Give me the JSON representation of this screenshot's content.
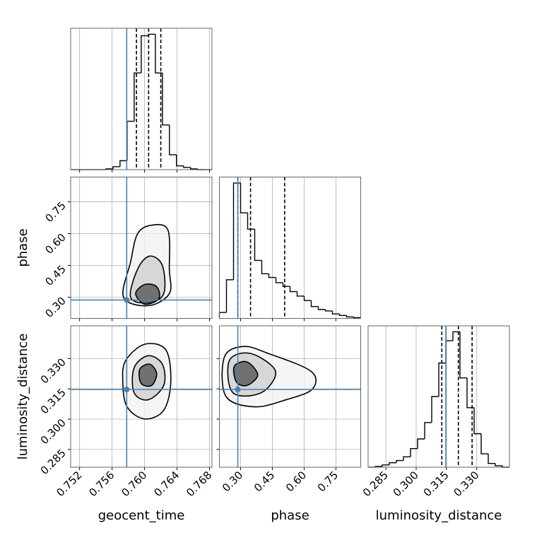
{
  "chart_data": {
    "type": "corner",
    "color": "#000000",
    "truth_color": "#4682b4",
    "grid": true,
    "parameters": [
      {
        "label": "geocent_time",
        "xlim": [
          0.7509,
          0.7683
        ],
        "xticks": [
          0.752,
          0.756,
          {
            "value": 0.76,
            "label": "0.760"
          },
          0.764,
          0.768
        ],
        "truth": 0.7578,
        "quantiles": [
          0.759,
          0.7605,
          0.762
        ],
        "hist": {
          "bins": [
            0.7509,
            0.75177,
            0.75264,
            0.7535,
            0.75437,
            0.75524,
            0.75611,
            0.75698,
            0.75785,
            0.75872,
            0.75959,
            0.76046,
            0.76133,
            0.7622,
            0.76306,
            0.76393,
            0.7648,
            0.76567,
            0.76654,
            0.76741,
            0.7683
          ],
          "counts": [
            0,
            0,
            0,
            0,
            0,
            1,
            4,
            12,
            65,
            130,
            180,
            182,
            130,
            60,
            20,
            5,
            3,
            1,
            0,
            0
          ],
          "ylim": [
            0,
            190
          ]
        }
      },
      {
        "label": "phase",
        "xlim": [
          0.2,
          0.867
        ],
        "xticks": [
          {
            "value": 0.3,
            "label": "0.30"
          },
          0.45,
          {
            "value": 0.6,
            "label": "0.60"
          },
          0.75
        ],
        "truth": 0.287,
        "quantiles": [
          0.287,
          0.347,
          0.508
        ],
        "hist": {
          "bins": [
            0.2,
            0.23335,
            0.2667,
            0.30005,
            0.3334,
            0.36675,
            0.4001,
            0.43345,
            0.4668,
            0.50015,
            0.5335,
            0.56685,
            0.6002,
            0.63355,
            0.6669,
            0.70025,
            0.7336,
            0.76695,
            0.8003,
            0.83365,
            0.867
          ],
          "counts": [
            8,
            52,
            182,
            142,
            120,
            78,
            60,
            55,
            48,
            43,
            36,
            30,
            24,
            16,
            12,
            10,
            6,
            4,
            2,
            1
          ],
          "ylim": [
            0,
            190
          ]
        }
      },
      {
        "label": "luminosity_distance",
        "xlim": [
          0.2762,
          0.3462
        ],
        "xticks": [
          0.285,
          {
            "value": 0.3,
            "label": "0.300"
          },
          0.315,
          {
            "value": 0.33,
            "label": "0.330"
          }
        ],
        "truth": 0.3147,
        "quantiles": [
          0.3127,
          0.3209,
          0.3277
        ],
        "hist": {
          "bins": [
            0.2762,
            0.2797,
            0.2832,
            0.2867,
            0.2902,
            0.2937,
            0.2972,
            0.3007,
            0.3042,
            0.3077,
            0.3112,
            0.3147,
            0.3182,
            0.3217,
            0.3252,
            0.3287,
            0.3322,
            0.3357,
            0.3392,
            0.3427,
            0.3462
          ],
          "counts": [
            0,
            1,
            3,
            6,
            9,
            14,
            25,
            38,
            60,
            95,
            140,
            170,
            182,
            120,
            80,
            45,
            18,
            5,
            2,
            0
          ],
          "ylim": [
            0,
            190
          ]
        }
      }
    ],
    "pairs": [
      {
        "x": 0,
        "y": 1,
        "contours": [
          {
            "x": [
              0.75741,
              0.75828,
              0.75915,
              0.76088,
              0.76288,
              0.76305,
              0.76305,
              0.76045
            ],
            "y": [
              0.3,
              0.467,
              0.6,
              0.64,
              0.617,
              0.433,
              0.317,
              0.26
            ]
          },
          {
            "x": [
              0.75828,
              0.75915,
              0.76063,
              0.76219,
              0.76236,
              0.76045
            ],
            "y": [
              0.3,
              0.433,
              0.494,
              0.45,
              0.317,
              0.273
            ]
          },
          {
            "x": [
              0.7589,
              0.76002,
              0.76149,
              0.76175,
              0.76002
            ],
            "y": [
              0.317,
              0.36,
              0.35,
              0.293,
              0.267
            ]
          }
        ]
      },
      {
        "x": 0,
        "y": 2,
        "contours": [
          {
            "x": [
              0.75767,
              0.76002,
              0.76262,
              0.76323,
              0.76236,
              0.76002,
              0.75784,
              0.75732
            ],
            "y": [
              0.329,
              0.3371,
              0.3343,
              0.3184,
              0.3044,
              0.3001,
              0.3061,
              0.3184
            ]
          },
          {
            "x": [
              0.75871,
              0.76045,
              0.76219,
              0.76236,
              0.76045,
              0.75871
            ],
            "y": [
              0.3254,
              0.3314,
              0.3272,
              0.3167,
              0.3096,
              0.3131
            ]
          },
          {
            "x": [
              0.75941,
              0.76063,
              0.76149,
              0.76088,
              0.75958
            ],
            "y": [
              0.3247,
              0.3272,
              0.3226,
              0.3167,
              0.3177
            ]
          }
        ]
      },
      {
        "x": 1,
        "y": 2,
        "contours": [
          {
            "x": [
              0.2235,
              0.314,
              0.4313,
              0.6324,
              0.6391,
              0.5151,
              0.3643,
              0.2302
            ],
            "y": [
              0.3307,
              0.336,
              0.3325,
              0.3237,
              0.3149,
              0.3096,
              0.3061,
              0.3114
            ]
          },
          {
            "x": [
              0.2469,
              0.3475,
              0.4648,
              0.3978,
              0.2637
            ],
            "y": [
              0.329,
              0.3325,
              0.3237,
              0.3131,
              0.3131
            ]
          },
          {
            "x": [
              0.2704,
              0.3307,
              0.381,
              0.3307,
              0.2805
            ],
            "y": [
              0.3262,
              0.3283,
              0.3219,
              0.3167,
              0.3184
            ]
          }
        ]
      }
    ]
  }
}
